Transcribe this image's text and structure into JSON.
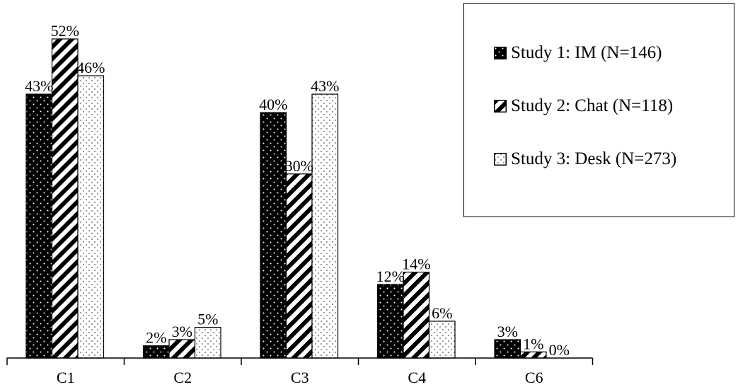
{
  "chart_data": {
    "type": "bar",
    "categories": [
      "C1",
      "C2",
      "C3",
      "C4",
      "C6"
    ],
    "series": [
      {
        "name": "Study 1: IM (N=146)",
        "values": [
          43,
          2,
          40,
          12,
          3
        ],
        "labels": [
          "43%",
          "2%",
          "40%",
          "12%",
          "3%"
        ],
        "pattern": "dots"
      },
      {
        "name": "Study 2: Chat (N=118)",
        "values": [
          52,
          3,
          30,
          14,
          1
        ],
        "labels": [
          "52%",
          "3%",
          "30%",
          "14%",
          "1%"
        ],
        "pattern": "stripes"
      },
      {
        "name": "Study 3: Desk (N=273)",
        "values": [
          46,
          5,
          43,
          6,
          0
        ],
        "labels": [
          "46%",
          "5%",
          "43%",
          "6%",
          "0%"
        ],
        "pattern": "sparse-dots"
      }
    ],
    "title": "",
    "xlabel": "",
    "ylabel": "",
    "ylim": [
      0,
      52
    ],
    "grid": false,
    "legend_position": "top-right"
  }
}
